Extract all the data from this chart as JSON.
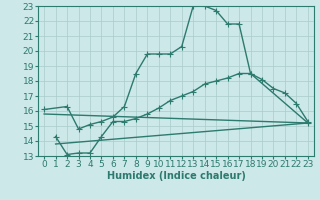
{
  "xlabel": "Humidex (Indice chaleur)",
  "background_color": "#cce8e8",
  "line_color": "#2d7a6e",
  "grid_color": "#aacccc",
  "xlim": [
    -0.5,
    23.5
  ],
  "ylim": [
    13,
    23
  ],
  "xticks": [
    0,
    1,
    2,
    3,
    4,
    5,
    6,
    7,
    8,
    9,
    10,
    11,
    12,
    13,
    14,
    15,
    16,
    17,
    18,
    19,
    20,
    21,
    22,
    23
  ],
  "yticks": [
    13,
    14,
    15,
    16,
    17,
    18,
    19,
    20,
    21,
    22,
    23
  ],
  "line1_x": [
    0,
    2,
    3,
    4,
    5,
    6,
    7,
    8,
    9,
    10,
    11,
    12,
    13,
    14,
    15,
    16,
    17,
    18,
    23
  ],
  "line1_y": [
    16.1,
    16.3,
    14.8,
    15.1,
    15.3,
    15.6,
    16.3,
    18.5,
    19.8,
    19.8,
    19.8,
    20.3,
    23.0,
    23.0,
    22.7,
    21.8,
    21.8,
    18.5,
    15.2
  ],
  "line2_x": [
    1,
    2,
    3,
    4,
    5,
    6,
    7,
    8,
    9,
    10,
    11,
    12,
    13,
    14,
    15,
    16,
    17,
    18,
    19,
    20,
    21,
    22,
    23
  ],
  "line2_y": [
    14.3,
    13.1,
    13.2,
    13.2,
    14.3,
    15.3,
    15.3,
    15.5,
    15.8,
    16.2,
    16.7,
    17.0,
    17.3,
    17.8,
    18.0,
    18.2,
    18.5,
    18.5,
    18.1,
    17.5,
    17.2,
    16.5,
    15.3
  ],
  "line3_x": [
    0,
    23
  ],
  "line3_y": [
    15.8,
    15.2
  ],
  "line4_x": [
    1,
    23
  ],
  "line4_y": [
    13.8,
    15.2
  ],
  "marker_size": 2.5,
  "linewidth": 1.0,
  "font_size": 6.5
}
